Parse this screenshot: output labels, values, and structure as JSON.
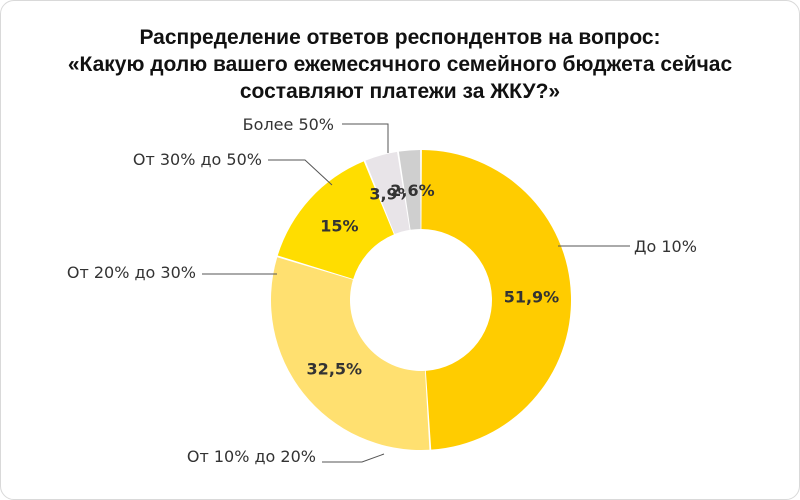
{
  "title_lines": [
    "Распределение ответов респондентов на вопрос:",
    "«Какую долю вашего ежемесячного семейного бюджета сейчас",
    "составляют платежи за ЖКУ?»"
  ],
  "chart_data": {
    "type": "pie",
    "variant": "donut",
    "title": "Распределение ответов респондентов на вопрос: «Какую долю вашего ежемесячного семейного бюджета сейчас составляют платежи за ЖКУ?»",
    "legend": "none",
    "slices": [
      {
        "category": "До 10%",
        "value": 51.9,
        "label": "51,9%",
        "color": "#FFCC00"
      },
      {
        "category": "От 10% до 20%",
        "value": 32.5,
        "label": "32,5%",
        "color": "#FFE070"
      },
      {
        "category": "От 20% до 30%",
        "value": 15,
        "label": "15%",
        "color": "#FFDD00"
      },
      {
        "category": "От 30% до 50%",
        "value": 3.9,
        "label": "3,9%",
        "color": "#E8E4E8"
      },
      {
        "category": "Более 50%",
        "value": 2.6,
        "label": "2,6%",
        "color": "#CFCFCF"
      }
    ]
  }
}
